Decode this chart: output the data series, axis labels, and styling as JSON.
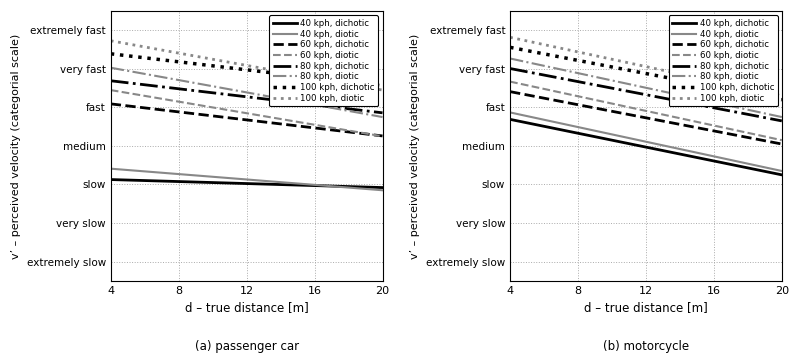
{
  "x_range": [
    4,
    20
  ],
  "x_ticks": [
    4,
    8,
    12,
    16,
    20
  ],
  "xlabel": "d – true distance [m]",
  "ylabel": "v’ – perceived velocity (categorial scale)",
  "y_labels": [
    "extremely slow",
    "very slow",
    "slow",
    "medium",
    "fast",
    "very fast",
    "extremely fast"
  ],
  "y_values": [
    1,
    2,
    3,
    4,
    5,
    6,
    7
  ],
  "y_lim": [
    0.5,
    7.5
  ],
  "subtitle_a": "(a) passenger car",
  "subtitle_b": "(b) motorcycle",
  "grid_color": "#aaaaaa",
  "panel_a": {
    "lines": [
      {
        "label": "40 kph, dichotic",
        "color": "#000000",
        "linestyle": "solid",
        "lw": 2.0,
        "beta0": 3.18,
        "beta1": -0.013
      },
      {
        "label": "40 kph, diotic",
        "color": "#888888",
        "linestyle": "solid",
        "lw": 1.5,
        "beta0": 3.55,
        "beta1": -0.035
      },
      {
        "label": "60 kph, dichotic",
        "color": "#000000",
        "linestyle": "dashed",
        "lw": 2.0,
        "beta0": 5.3,
        "beta1": -0.052
      },
      {
        "label": "60 kph, diotic",
        "color": "#888888",
        "linestyle": "dashed",
        "lw": 1.5,
        "beta0": 5.75,
        "beta1": -0.075
      },
      {
        "label": "80 kph, dichotic",
        "color": "#000000",
        "linestyle": "dashdot",
        "lw": 2.0,
        "beta0": 5.9,
        "beta1": -0.052
      },
      {
        "label": "80 kph, diotic",
        "color": "#888888",
        "linestyle": "dashdot",
        "lw": 1.5,
        "beta0": 6.35,
        "beta1": -0.08
      },
      {
        "label": "100 kph, dichotic",
        "color": "#000000",
        "linestyle": "dotted",
        "lw": 2.5,
        "beta0": 6.6,
        "beta1": -0.052
      },
      {
        "label": "100 kph, diotic",
        "color": "#888888",
        "linestyle": "dotted",
        "lw": 2.0,
        "beta0": 7.05,
        "beta1": -0.08
      }
    ]
  },
  "panel_b": {
    "lines": [
      {
        "label": "40 kph, dichotic",
        "color": "#000000",
        "linestyle": "solid",
        "lw": 2.0,
        "beta0": 5.05,
        "beta1": -0.09
      },
      {
        "label": "40 kph, diotic",
        "color": "#888888",
        "linestyle": "solid",
        "lw": 1.5,
        "beta0": 5.25,
        "beta1": -0.095
      },
      {
        "label": "60 kph, dichotic",
        "color": "#000000",
        "linestyle": "dashed",
        "lw": 2.0,
        "beta0": 5.75,
        "beta1": -0.085
      },
      {
        "label": "60 kph, diotic",
        "color": "#888888",
        "linestyle": "dashed",
        "lw": 1.5,
        "beta0": 6.05,
        "beta1": -0.095
      },
      {
        "label": "80 kph, dichotic",
        "color": "#000000",
        "linestyle": "dashdot",
        "lw": 2.0,
        "beta0": 6.35,
        "beta1": -0.085
      },
      {
        "label": "80 kph, diotic",
        "color": "#888888",
        "linestyle": "dashdot",
        "lw": 1.5,
        "beta0": 6.65,
        "beta1": -0.095
      },
      {
        "label": "100 kph, dichotic",
        "color": "#000000",
        "linestyle": "dotted",
        "lw": 2.5,
        "beta0": 6.9,
        "beta1": -0.085
      },
      {
        "label": "100 kph, diotic",
        "color": "#888888",
        "linestyle": "dotted",
        "lw": 2.0,
        "beta0": 7.2,
        "beta1": -0.095
      }
    ]
  },
  "legend_entries": [
    {
      "label": "40 kph, dichotic",
      "color": "#000000",
      "linestyle": "solid",
      "lw": 2.0
    },
    {
      "label": "40 kph, diotic",
      "color": "#888888",
      "linestyle": "solid",
      "lw": 1.5
    },
    {
      "label": "60 kph, dichotic",
      "color": "#000000",
      "linestyle": "dashed",
      "lw": 2.0
    },
    {
      "label": "60 kph, diotic",
      "color": "#888888",
      "linestyle": "dashed",
      "lw": 1.5
    },
    {
      "label": "80 kph, dichotic",
      "color": "#000000",
      "linestyle": "dashdot",
      "lw": 2.0
    },
    {
      "label": "80 kph, diotic",
      "color": "#888888",
      "linestyle": "dashdot",
      "lw": 1.5
    },
    {
      "label": "100 kph, dichotic",
      "color": "#000000",
      "linestyle": "dotted",
      "lw": 2.5
    },
    {
      "label": "100 kph, diotic",
      "color": "#888888",
      "linestyle": "dotted",
      "lw": 2.0
    }
  ]
}
